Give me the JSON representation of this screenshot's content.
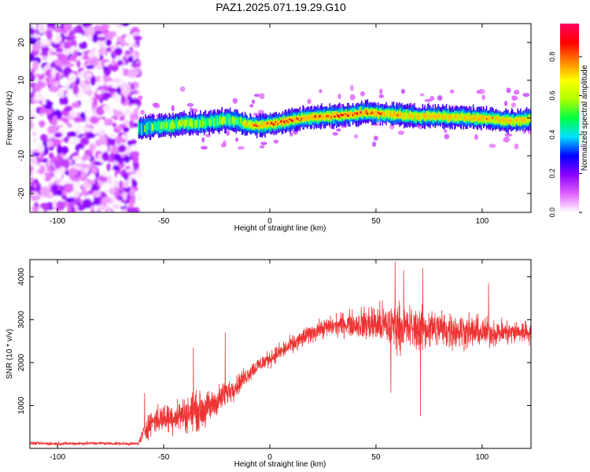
{
  "title": "PAZ1.2025.071.19.29.G10",
  "chart_data": [
    {
      "type": "heatmap",
      "xlabel": "Height of straight line (km)",
      "ylabel": "Frequency (Hz)",
      "xlim": [
        -113,
        123
      ],
      "ylim": [
        -25,
        25
      ],
      "xticks": [
        -100,
        -50,
        0,
        50,
        100
      ],
      "yticks": [
        -20,
        -10,
        0,
        10,
        20
      ],
      "colorbar": {
        "label": "Normalized spectral amplitude",
        "range": [
          0.0,
          0.97
        ],
        "ticks": [
          0.0,
          0.2,
          0.4,
          0.6,
          0.8
        ],
        "tick_labels": [
          "0.0",
          "0.2",
          "0.4",
          "0.6",
          "0.8"
        ],
        "colormap": [
          "#ffffff",
          "#e060ff",
          "#8a00ff",
          "#0000ff",
          "#00e0ff",
          "#00ff40",
          "#b0ff00",
          "#ffff00",
          "#ff8000",
          "#ff0000",
          "#ff0060"
        ]
      },
      "noise_region_x": [
        -113,
        -62
      ],
      "signal_trace": {
        "x": [
          -62,
          -55,
          -50,
          -45,
          -40,
          -35,
          -30,
          -25,
          -20,
          -15,
          -10,
          -5,
          0,
          5,
          10,
          15,
          20,
          25,
          30,
          35,
          40,
          45,
          50,
          55,
          60,
          65,
          70,
          75,
          80,
          85,
          90,
          95,
          100,
          105,
          110,
          115,
          120,
          123
        ],
        "freq": [
          -2.8,
          -2.2,
          -2.0,
          -1.8,
          -1.2,
          -1.5,
          -1.2,
          -0.8,
          -0.5,
          -1.0,
          -1.8,
          -2.0,
          -1.6,
          -1.2,
          -0.6,
          -0.2,
          0.2,
          0.4,
          0.5,
          0.8,
          1.0,
          1.5,
          1.2,
          1.0,
          0.8,
          0.6,
          0.3,
          0.5,
          0.4,
          0.2,
          0.3,
          0.0,
          0.0,
          -0.3,
          -0.6,
          -0.8,
          -0.5,
          -0.4
        ],
        "amp": [
          0.45,
          0.55,
          0.6,
          0.6,
          0.65,
          0.6,
          0.62,
          0.6,
          0.55,
          0.6,
          0.8,
          0.85,
          0.9,
          0.88,
          0.9,
          0.85,
          0.88,
          0.9,
          0.9,
          0.92,
          0.9,
          0.85,
          0.85,
          0.8,
          0.82,
          0.75,
          0.75,
          0.78,
          0.8,
          0.8,
          0.78,
          0.8,
          0.8,
          0.8,
          0.8,
          0.75,
          0.78,
          0.7
        ]
      }
    },
    {
      "type": "line",
      "xlabel": "Height of straight line (km)",
      "ylabel": "SNR (10 * v/v)",
      "xlim": [
        -113,
        123
      ],
      "ylim": [
        0,
        4400
      ],
      "xticks": [
        -100,
        -50,
        0,
        50,
        100
      ],
      "yticks": [
        1000,
        2000,
        3000,
        4000
      ],
      "series": [
        {
          "color": "#ee3333",
          "envelope": {
            "x": [
              -113,
              -100,
              -80,
              -70,
              -62,
              -58,
              -55,
              -50,
              -45,
              -40,
              -36,
              -30,
              -25,
              -20,
              -15,
              -10,
              -5,
              0,
              5,
              10,
              15,
              20,
              25,
              30,
              35,
              40,
              45,
              50,
              55,
              60,
              65,
              70,
              75,
              80,
              85,
              90,
              95,
              100,
              105,
              110,
              115,
              120,
              123
            ],
            "mean": [
              120,
              110,
              120,
              110,
              110,
              500,
              650,
              700,
              750,
              800,
              850,
              900,
              1100,
              1300,
              1500,
              1750,
              1950,
              2100,
              2250,
              2400,
              2550,
              2700,
              2800,
              2850,
              2900,
              2900,
              2900,
              2900,
              2850,
              2850,
              2800,
              2780,
              2800,
              2800,
              2750,
              2750,
              2720,
              2700,
              2700,
              2700,
              2700,
              2720,
              2700
            ],
            "amp": [
              50,
              60,
              60,
              50,
              50,
              400,
              450,
              500,
              550,
              600,
              650,
              600,
              500,
              450,
              350,
              300,
              280,
              280,
              300,
              300,
              320,
              320,
              320,
              350,
              400,
              450,
              600,
              700,
              750,
              800,
              750,
              750,
              700,
              650,
              650,
              600,
              550,
              500,
              450,
              450,
              400,
              400,
              350
            ]
          },
          "spikes": [
            {
              "x": -59,
              "y": 1290
            },
            {
              "x": -36,
              "y": 2350
            },
            {
              "x": -21,
              "y": 2700
            },
            {
              "x": 59,
              "y": 4350
            },
            {
              "x": 63,
              "y": 4150
            },
            {
              "x": 72,
              "y": 4200
            },
            {
              "x": 71,
              "y": 750
            },
            {
              "x": 57,
              "y": 1300
            },
            {
              "x": 103,
              "y": 3850
            }
          ]
        }
      ]
    }
  ]
}
